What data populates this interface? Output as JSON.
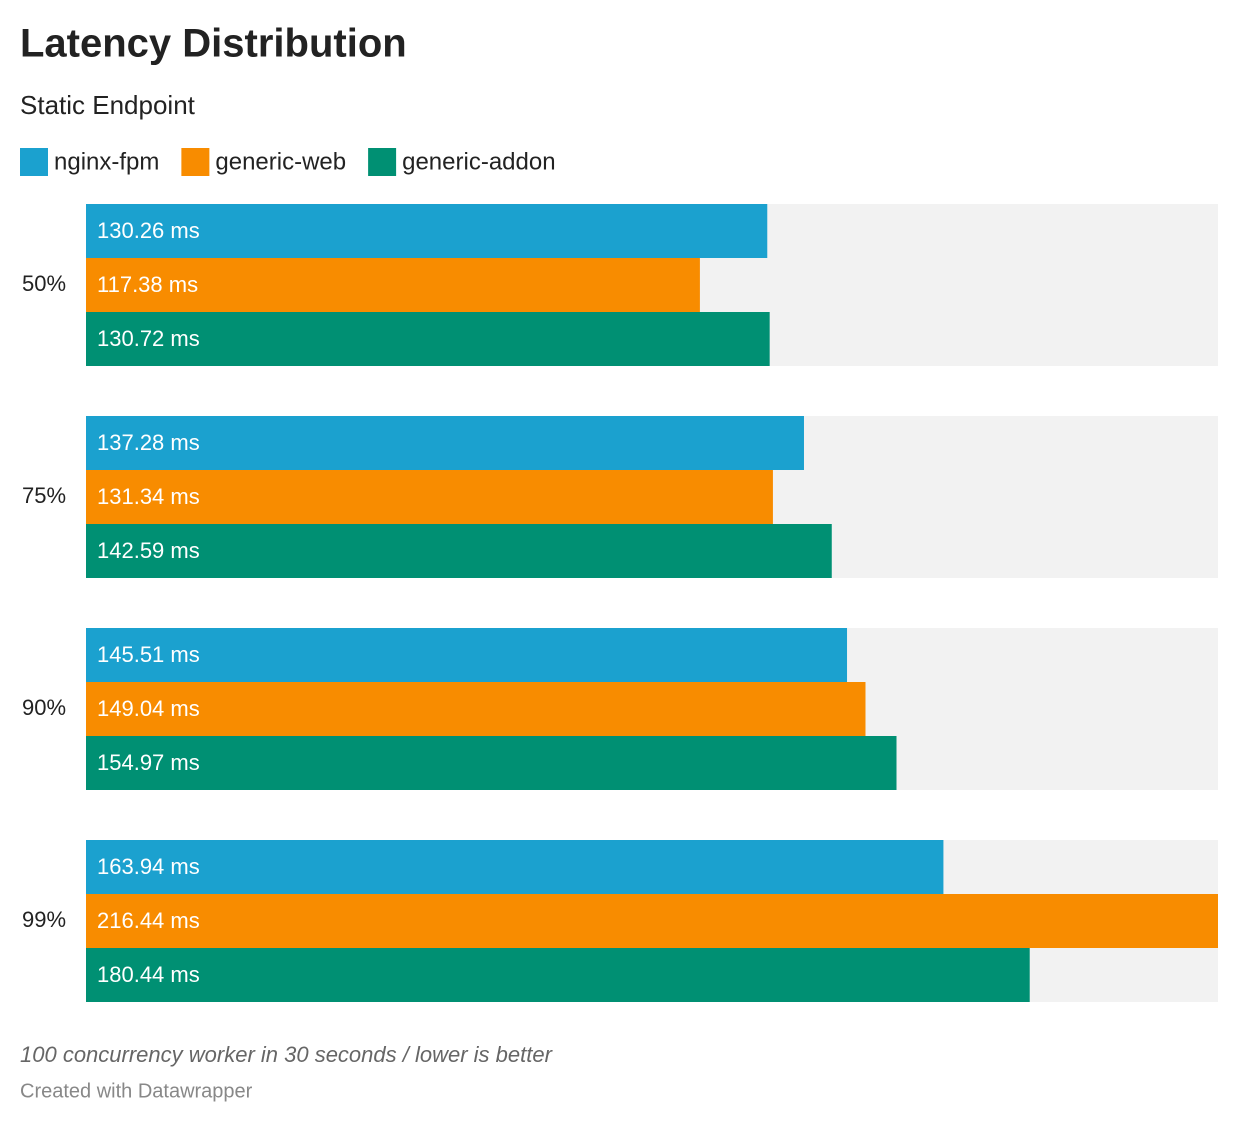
{
  "chart_data": {
    "type": "bar",
    "orientation": "horizontal",
    "title": "Latency Distribution",
    "subtitle": "Static Endpoint",
    "categories": [
      "50%",
      "75%",
      "90%",
      "99%"
    ],
    "series": [
      {
        "name": "nginx-fpm",
        "color": "#1ba1cf",
        "values": [
          130.26,
          137.28,
          145.51,
          163.94
        ],
        "value_labels": [
          "130.26 ms",
          "137.28 ms",
          "145.51 ms",
          "163.94 ms"
        ]
      },
      {
        "name": "generic-web",
        "color": "#f88c00",
        "values": [
          117.38,
          131.34,
          149.04,
          216.44
        ],
        "value_labels": [
          "117.38 ms",
          "131.34 ms",
          "149.04 ms",
          "216.44 ms"
        ]
      },
      {
        "name": "generic-addon",
        "color": "#009073",
        "values": [
          130.72,
          142.59,
          154.97,
          180.44
        ],
        "value_labels": [
          "130.72 ms",
          "142.59 ms",
          "154.97 ms",
          "180.44 ms"
        ]
      }
    ],
    "xlim": [
      0,
      216.44
    ],
    "notes": "100 concurrency worker in 30 seconds / lower is better",
    "credit": "Created with Datawrapper"
  }
}
